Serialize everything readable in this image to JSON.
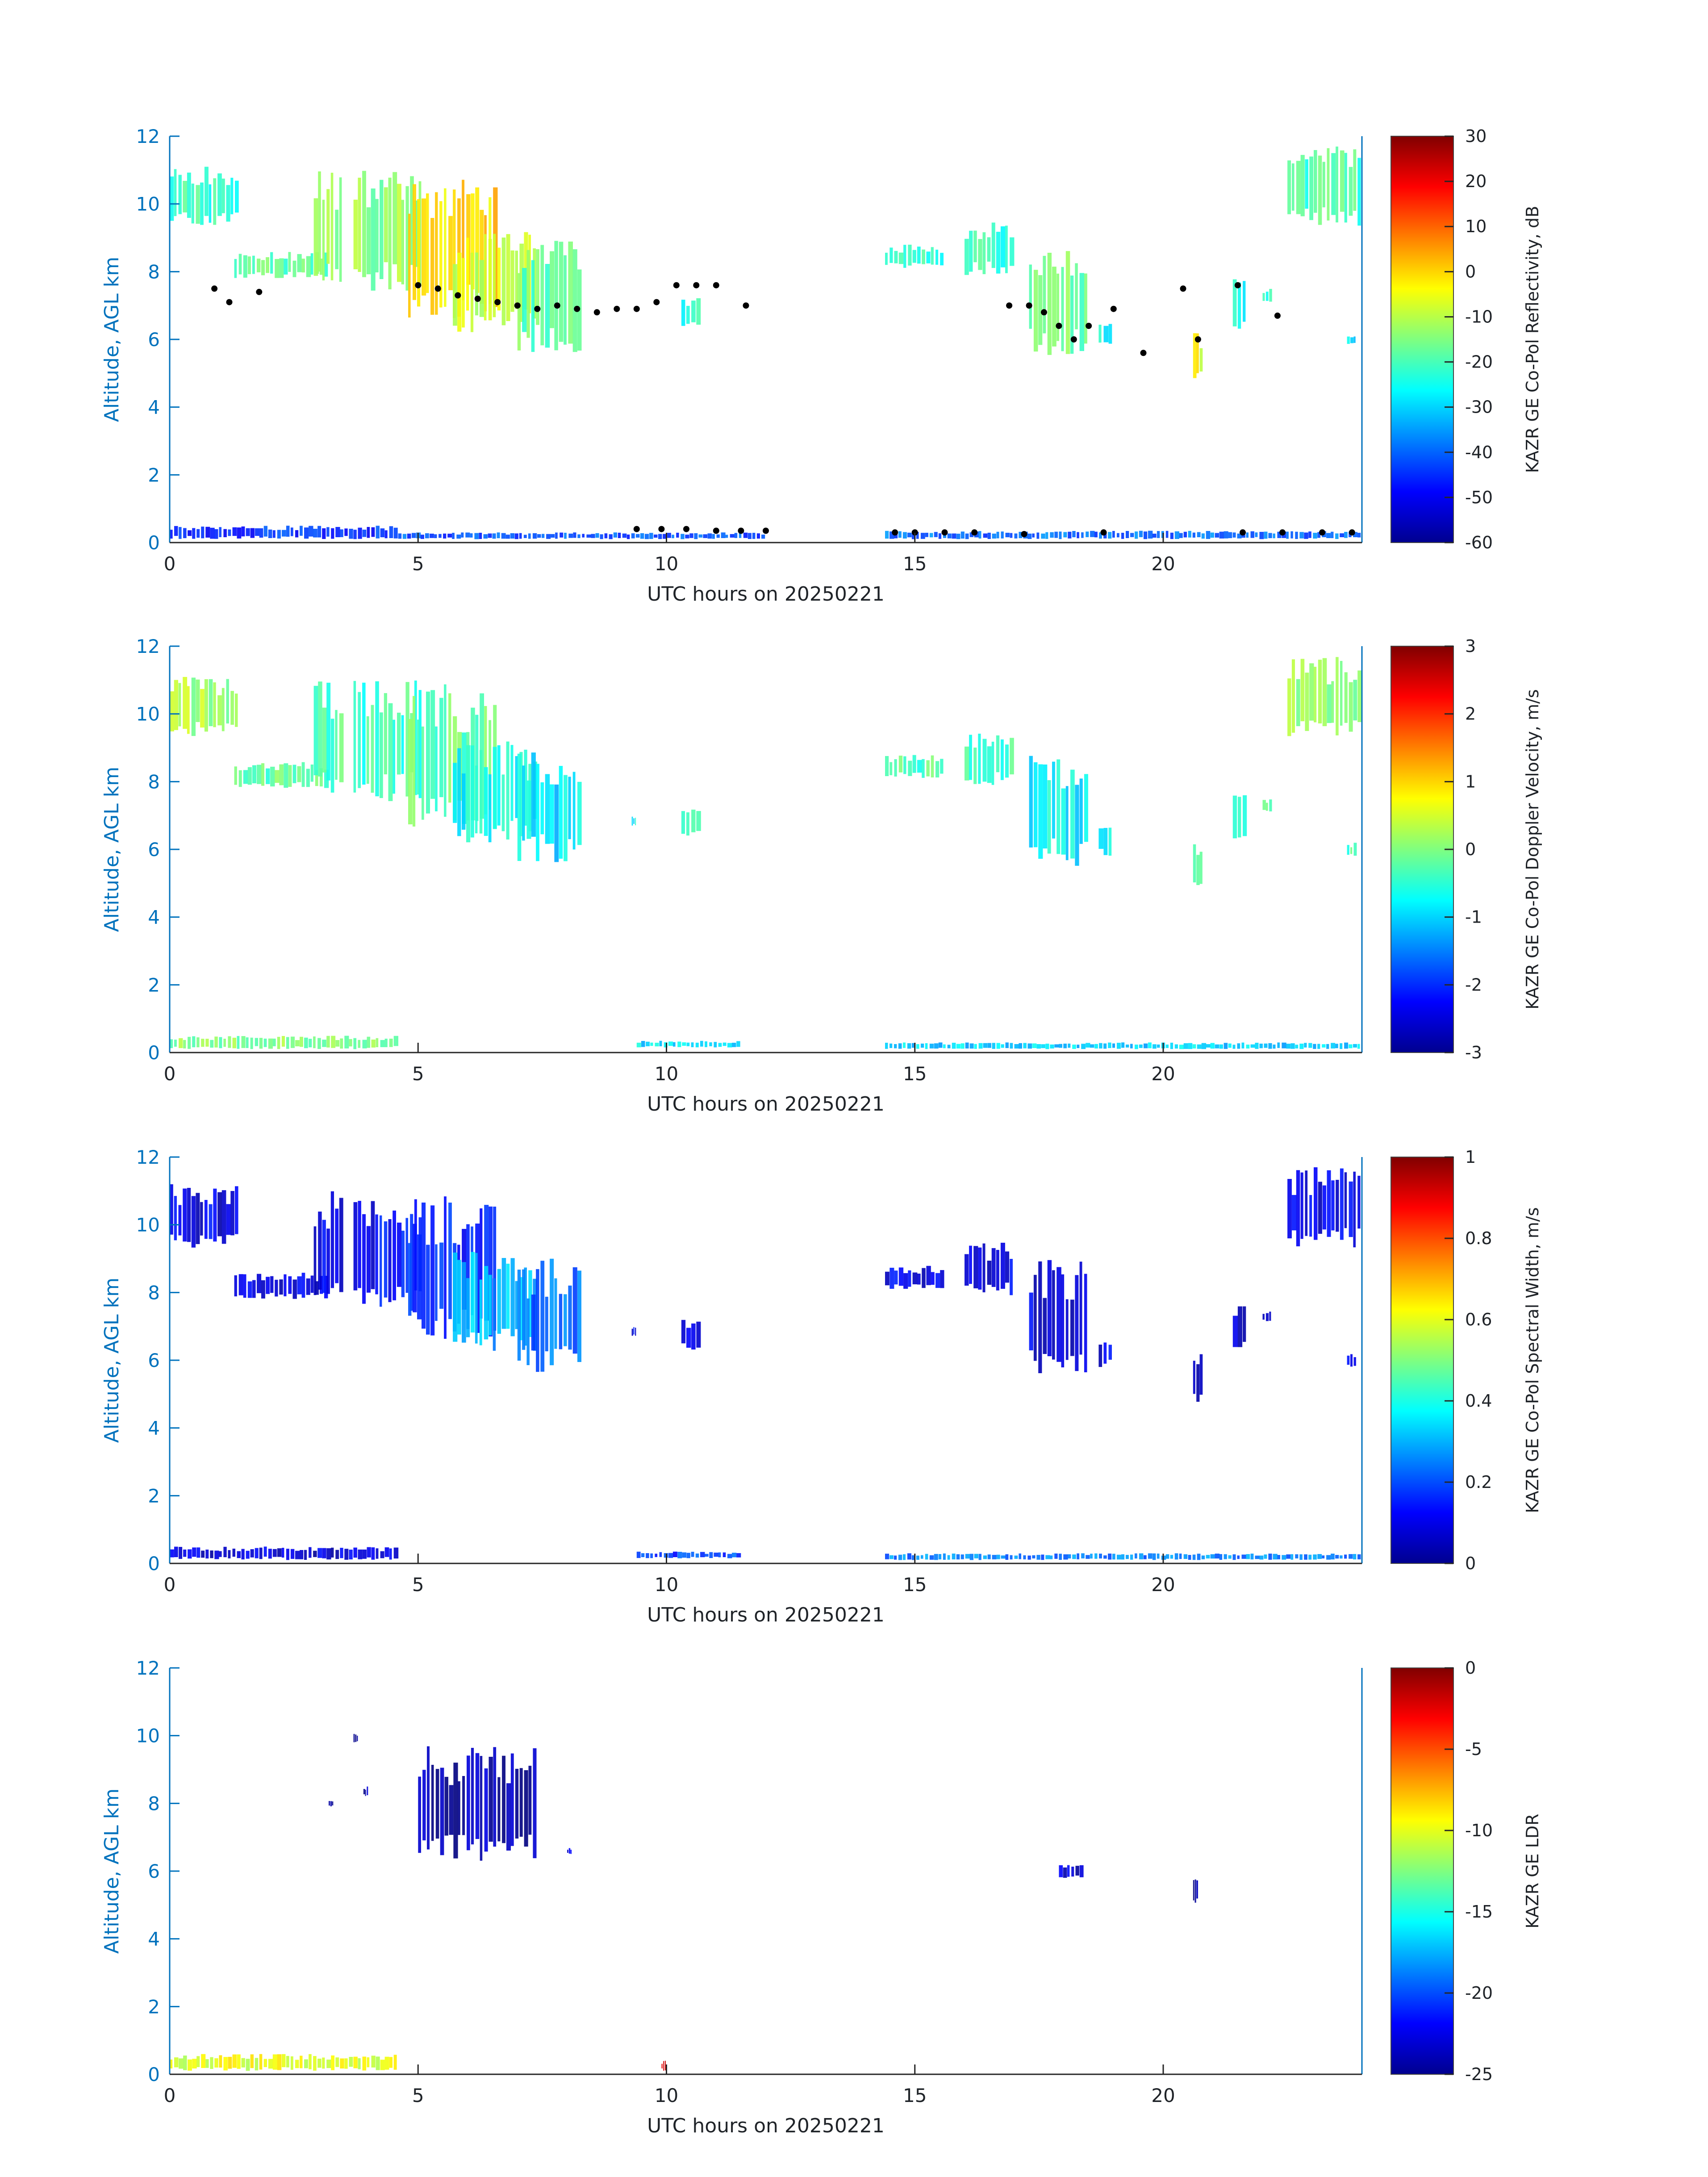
{
  "chart_data": [
    {
      "type": "heatmap",
      "panel": "reflectivity",
      "xlabel": "UTC hours on 20250221",
      "ylabel": "Altitude, AGL km",
      "xlim": [
        0,
        24
      ],
      "ylim": [
        0,
        12
      ],
      "xticks": [
        0,
        5,
        10,
        15,
        20
      ],
      "yticks": [
        0,
        2,
        4,
        6,
        8,
        10,
        12
      ],
      "colorbar": {
        "label": "KAZR GE Co-Pol Reflectivity, dB",
        "range": [
          -60,
          30
        ],
        "ticks": [
          -60,
          -50,
          -40,
          -30,
          -20,
          -10,
          0,
          10,
          20,
          30
        ]
      },
      "cloud_regions": [
        {
          "t0": 0.0,
          "t1": 1.4,
          "z0": 9.3,
          "z1": 11.2,
          "v": -22
        },
        {
          "t0": 1.3,
          "t1": 3.2,
          "z0": 7.8,
          "z1": 8.6,
          "v": -18
        },
        {
          "t0": 2.9,
          "t1": 3.5,
          "z0": 7.6,
          "z1": 11.0,
          "v": -12
        },
        {
          "t0": 3.7,
          "t1": 5.1,
          "z0": 7.4,
          "z1": 11.0,
          "v": -14
        },
        {
          "t0": 4.8,
          "t1": 6.6,
          "z0": 6.6,
          "z1": 10.9,
          "v": 0
        },
        {
          "t0": 5.7,
          "t1": 7.4,
          "z0": 6.2,
          "z1": 9.2,
          "v": -8
        },
        {
          "t0": 7.0,
          "t1": 8.3,
          "z0": 5.6,
          "z1": 9.0,
          "v": -18
        },
        {
          "t0": 10.3,
          "t1": 10.7,
          "z0": 6.3,
          "z1": 7.3,
          "v": -24
        },
        {
          "t0": 14.4,
          "t1": 15.6,
          "z0": 8.1,
          "z1": 8.8,
          "v": -22
        },
        {
          "t0": 16.0,
          "t1": 17.0,
          "z0": 7.9,
          "z1": 9.5,
          "v": -22
        },
        {
          "t0": 17.3,
          "t1": 18.5,
          "z0": 5.5,
          "z1": 9.0,
          "v": -16
        },
        {
          "t0": 18.7,
          "t1": 19.0,
          "z0": 5.8,
          "z1": 6.7,
          "v": -24
        },
        {
          "t0": 20.6,
          "t1": 20.8,
          "z0": 4.7,
          "z1": 6.2,
          "v": -5
        },
        {
          "t0": 21.4,
          "t1": 21.7,
          "z0": 6.2,
          "z1": 7.8,
          "v": -24
        },
        {
          "t0": 22.0,
          "t1": 22.2,
          "z0": 7.1,
          "z1": 7.5,
          "v": -24
        },
        {
          "t0": 22.5,
          "t1": 24.0,
          "z0": 9.3,
          "z1": 11.7,
          "v": -20
        },
        {
          "t0": 23.7,
          "t1": 23.9,
          "z0": 5.8,
          "z1": 6.2,
          "v": -30
        },
        {
          "t0": 0.0,
          "t1": 4.6,
          "z0": 0.1,
          "z1": 0.5,
          "v": -45
        },
        {
          "t0": 4.6,
          "t1": 12.0,
          "z0": 0.1,
          "z1": 0.3,
          "v": -42
        },
        {
          "t0": 14.4,
          "t1": 24.0,
          "z0": 0.1,
          "z1": 0.35,
          "v": -40
        }
      ],
      "cloud_base_markers": [
        {
          "t": 0.9,
          "z": 7.5
        },
        {
          "t": 1.2,
          "z": 7.1
        },
        {
          "t": 1.8,
          "z": 7.4
        },
        {
          "t": 5.0,
          "z": 7.6
        },
        {
          "t": 5.4,
          "z": 7.5
        },
        {
          "t": 5.8,
          "z": 7.3
        },
        {
          "t": 6.2,
          "z": 7.2
        },
        {
          "t": 6.6,
          "z": 7.1
        },
        {
          "t": 7.0,
          "z": 7.0
        },
        {
          "t": 7.4,
          "z": 6.9
        },
        {
          "t": 7.8,
          "z": 7.0
        },
        {
          "t": 8.2,
          "z": 6.9
        },
        {
          "t": 8.6,
          "z": 6.8
        },
        {
          "t": 9.0,
          "z": 6.9
        },
        {
          "t": 9.4,
          "z": 6.9
        },
        {
          "t": 9.8,
          "z": 7.1
        },
        {
          "t": 10.2,
          "z": 7.6
        },
        {
          "t": 10.6,
          "z": 7.6
        },
        {
          "t": 11.0,
          "z": 7.6
        },
        {
          "t": 11.6,
          "z": 7.0
        },
        {
          "t": 16.9,
          "z": 7.0
        },
        {
          "t": 17.3,
          "z": 7.0
        },
        {
          "t": 17.6,
          "z": 6.8
        },
        {
          "t": 17.9,
          "z": 6.4
        },
        {
          "t": 18.2,
          "z": 6.0
        },
        {
          "t": 18.5,
          "z": 6.4
        },
        {
          "t": 19.0,
          "z": 6.9
        },
        {
          "t": 19.6,
          "z": 5.6
        },
        {
          "t": 20.4,
          "z": 7.5
        },
        {
          "t": 20.7,
          "z": 6.0
        },
        {
          "t": 21.5,
          "z": 7.6
        },
        {
          "t": 22.3,
          "z": 6.7
        },
        {
          "t": 9.4,
          "z": 0.4
        },
        {
          "t": 9.9,
          "z": 0.4
        },
        {
          "t": 10.4,
          "z": 0.4
        },
        {
          "t": 11.0,
          "z": 0.35
        },
        {
          "t": 11.5,
          "z": 0.35
        },
        {
          "t": 12.0,
          "z": 0.35
        },
        {
          "t": 14.6,
          "z": 0.3
        },
        {
          "t": 15.0,
          "z": 0.3
        },
        {
          "t": 15.6,
          "z": 0.3
        },
        {
          "t": 16.2,
          "z": 0.3
        },
        {
          "t": 17.2,
          "z": 0.25
        },
        {
          "t": 18.8,
          "z": 0.3
        },
        {
          "t": 21.6,
          "z": 0.3
        },
        {
          "t": 22.4,
          "z": 0.3
        },
        {
          "t": 23.2,
          "z": 0.3
        },
        {
          "t": 23.8,
          "z": 0.3
        }
      ]
    },
    {
      "type": "heatmap",
      "panel": "doppler_velocity",
      "xlabel": "UTC hours on 20250221",
      "ylabel": "Altitude, AGL km",
      "xlim": [
        0,
        24
      ],
      "ylim": [
        0,
        12
      ],
      "xticks": [
        0,
        5,
        10,
        15,
        20
      ],
      "yticks": [
        0,
        2,
        4,
        6,
        8,
        10,
        12
      ],
      "colorbar": {
        "label": "KAZR GE Co-Pol Doppler Velocity, m/s",
        "range": [
          -3,
          3
        ],
        "ticks": [
          -3,
          -2,
          -1,
          0,
          1,
          2,
          3
        ]
      },
      "cloud_regions": [
        {
          "t0": 0.0,
          "t1": 1.4,
          "z0": 9.3,
          "z1": 11.2,
          "v": 0.2
        },
        {
          "t0": 1.3,
          "t1": 3.2,
          "z0": 7.8,
          "z1": 8.6,
          "v": -0.2
        },
        {
          "t0": 2.9,
          "t1": 3.5,
          "z0": 7.6,
          "z1": 11.0,
          "v": -0.3
        },
        {
          "t0": 3.7,
          "t1": 5.1,
          "z0": 7.4,
          "z1": 11.0,
          "v": -0.4
        },
        {
          "t0": 4.8,
          "t1": 6.6,
          "z0": 6.6,
          "z1": 10.9,
          "v": -0.2
        },
        {
          "t0": 5.7,
          "t1": 7.4,
          "z0": 6.2,
          "z1": 9.2,
          "v": -0.7
        },
        {
          "t0": 7.0,
          "t1": 8.3,
          "z0": 5.6,
          "z1": 9.0,
          "v": -0.9
        },
        {
          "t0": 9.3,
          "t1": 9.4,
          "z0": 6.7,
          "z1": 7.0,
          "v": -0.8
        },
        {
          "t0": 10.3,
          "t1": 10.7,
          "z0": 6.3,
          "z1": 7.3,
          "v": -0.6
        },
        {
          "t0": 14.4,
          "t1": 15.6,
          "z0": 8.1,
          "z1": 8.8,
          "v": -0.3
        },
        {
          "t0": 16.0,
          "t1": 17.0,
          "z0": 7.9,
          "z1": 9.5,
          "v": -0.4
        },
        {
          "t0": 17.3,
          "t1": 18.5,
          "z0": 5.5,
          "z1": 9.0,
          "v": -0.8
        },
        {
          "t0": 18.7,
          "t1": 19.0,
          "z0": 5.8,
          "z1": 6.7,
          "v": -0.8
        },
        {
          "t0": 20.6,
          "t1": 20.8,
          "z0": 4.7,
          "z1": 6.2,
          "v": -0.5
        },
        {
          "t0": 21.4,
          "t1": 21.7,
          "z0": 6.2,
          "z1": 7.8,
          "v": -0.6
        },
        {
          "t0": 22.0,
          "t1": 22.2,
          "z0": 7.1,
          "z1": 7.5,
          "v": -0.3
        },
        {
          "t0": 22.5,
          "t1": 24.0,
          "z0": 9.3,
          "z1": 11.7,
          "v": 0.1
        },
        {
          "t0": 23.7,
          "t1": 23.9,
          "z0": 5.8,
          "z1": 6.2,
          "v": -0.4
        },
        {
          "t0": 0.0,
          "t1": 4.6,
          "z0": 0.1,
          "z1": 0.5,
          "v": 0.0
        },
        {
          "t0": 9.4,
          "t1": 11.5,
          "z0": 0.15,
          "z1": 0.35,
          "v": -0.9
        },
        {
          "t0": 14.4,
          "t1": 24.0,
          "z0": 0.1,
          "z1": 0.3,
          "v": -1.0
        }
      ]
    },
    {
      "type": "heatmap",
      "panel": "spectral_width",
      "xlabel": "UTC hours on 20250221",
      "ylabel": "Altitude, AGL km",
      "xlim": [
        0,
        24
      ],
      "ylim": [
        0,
        12
      ],
      "xticks": [
        0,
        5,
        10,
        15,
        20
      ],
      "yticks": [
        0,
        2,
        4,
        6,
        8,
        10,
        12
      ],
      "colorbar": {
        "label": "KAZR GE Co-Pol Spectral Width, m/s",
        "range": [
          0,
          1
        ],
        "ticks": [
          0,
          0.2,
          0.4,
          0.6,
          0.8,
          1
        ]
      },
      "cloud_regions": [
        {
          "t0": 0.0,
          "t1": 1.4,
          "z0": 9.3,
          "z1": 11.2,
          "v": 0.1
        },
        {
          "t0": 1.3,
          "t1": 3.2,
          "z0": 7.8,
          "z1": 8.6,
          "v": 0.1
        },
        {
          "t0": 2.9,
          "t1": 3.5,
          "z0": 7.6,
          "z1": 11.0,
          "v": 0.1
        },
        {
          "t0": 3.7,
          "t1": 5.1,
          "z0": 7.4,
          "z1": 11.0,
          "v": 0.12
        },
        {
          "t0": 4.8,
          "t1": 6.6,
          "z0": 6.6,
          "z1": 10.9,
          "v": 0.15
        },
        {
          "t0": 5.7,
          "t1": 7.4,
          "z0": 6.2,
          "z1": 9.2,
          "v": 0.3
        },
        {
          "t0": 7.0,
          "t1": 8.3,
          "z0": 5.6,
          "z1": 9.0,
          "v": 0.22
        },
        {
          "t0": 9.3,
          "t1": 9.4,
          "z0": 6.7,
          "z1": 7.0,
          "v": 0.12
        },
        {
          "t0": 10.3,
          "t1": 10.7,
          "z0": 6.3,
          "z1": 7.3,
          "v": 0.1
        },
        {
          "t0": 14.4,
          "t1": 15.6,
          "z0": 8.1,
          "z1": 8.8,
          "v": 0.1
        },
        {
          "t0": 16.0,
          "t1": 17.0,
          "z0": 7.9,
          "z1": 9.5,
          "v": 0.1
        },
        {
          "t0": 17.3,
          "t1": 18.5,
          "z0": 5.5,
          "z1": 9.0,
          "v": 0.1
        },
        {
          "t0": 18.7,
          "t1": 19.0,
          "z0": 5.8,
          "z1": 6.7,
          "v": 0.1
        },
        {
          "t0": 20.6,
          "t1": 20.8,
          "z0": 4.7,
          "z1": 6.2,
          "v": 0.1
        },
        {
          "t0": 21.4,
          "t1": 21.7,
          "z0": 6.2,
          "z1": 7.8,
          "v": 0.1
        },
        {
          "t0": 22.0,
          "t1": 22.2,
          "z0": 7.1,
          "z1": 7.5,
          "v": 0.1
        },
        {
          "t0": 22.5,
          "t1": 24.0,
          "z0": 9.3,
          "z1": 11.7,
          "v": 0.1
        },
        {
          "t0": 23.7,
          "t1": 23.9,
          "z0": 5.8,
          "z1": 6.2,
          "v": 0.12
        },
        {
          "t0": 0.0,
          "t1": 4.6,
          "z0": 0.1,
          "z1": 0.5,
          "v": 0.08
        },
        {
          "t0": 9.4,
          "t1": 11.5,
          "z0": 0.15,
          "z1": 0.35,
          "v": 0.18
        },
        {
          "t0": 14.4,
          "t1": 24.0,
          "z0": 0.1,
          "z1": 0.3,
          "v": 0.25
        }
      ]
    },
    {
      "type": "heatmap",
      "panel": "ldr",
      "xlabel": "UTC hours on 20250221",
      "ylabel": "Altitude, AGL km",
      "xlim": [
        0,
        24
      ],
      "ylim": [
        0,
        12
      ],
      "xticks": [
        0,
        5,
        10,
        15,
        20
      ],
      "yticks": [
        0,
        2,
        4,
        6,
        8,
        10,
        12
      ],
      "colorbar": {
        "label": "KAZR GE LDR",
        "range": [
          -25,
          0
        ],
        "ticks": [
          -25,
          -20,
          -15,
          -10,
          -5,
          0
        ]
      },
      "cloud_regions": [
        {
          "t0": 3.7,
          "t1": 3.8,
          "z0": 9.8,
          "z1": 10.1,
          "v": -24
        },
        {
          "t0": 3.2,
          "t1": 3.3,
          "z0": 7.9,
          "z1": 8.1,
          "v": -24
        },
        {
          "t0": 3.9,
          "t1": 4.0,
          "z0": 8.2,
          "z1": 8.5,
          "v": -24
        },
        {
          "t0": 5.0,
          "t1": 7.4,
          "z0": 6.2,
          "z1": 9.7,
          "v": -24
        },
        {
          "t0": 8.0,
          "t1": 8.1,
          "z0": 6.5,
          "z1": 6.7,
          "v": -23
        },
        {
          "t0": 17.9,
          "t1": 18.4,
          "z0": 5.8,
          "z1": 6.2,
          "v": -23
        },
        {
          "t0": 20.6,
          "t1": 20.7,
          "z0": 5.0,
          "z1": 5.8,
          "v": -24
        },
        {
          "t0": 0.0,
          "t1": 4.6,
          "z0": 0.1,
          "z1": 0.6,
          "v": -10
        },
        {
          "t0": 9.9,
          "t1": 10.0,
          "z0": 0.1,
          "z1": 0.4,
          "v": -3
        }
      ]
    }
  ]
}
